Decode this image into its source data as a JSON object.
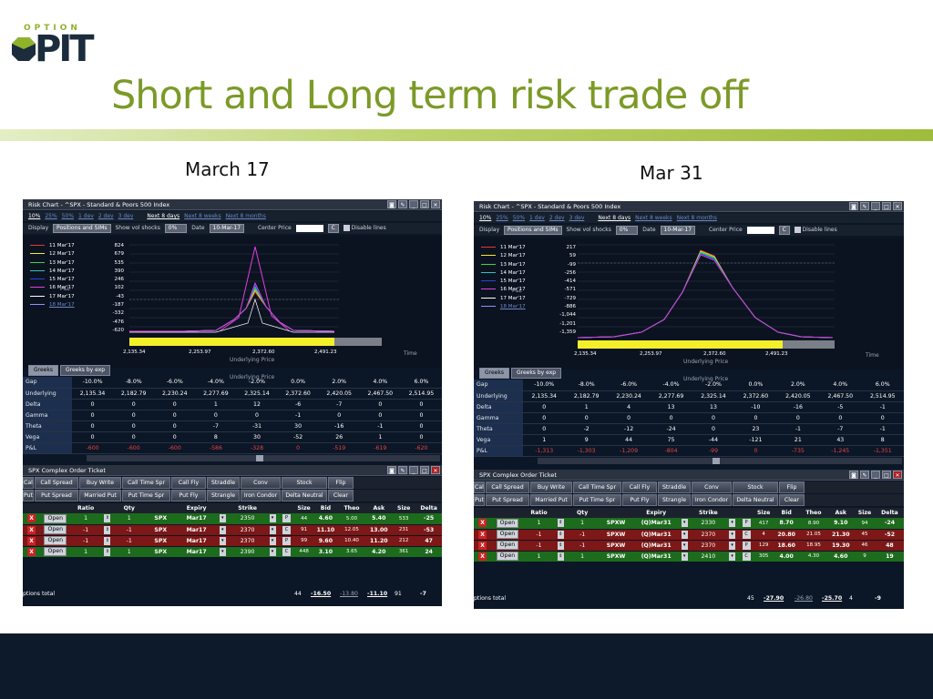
{
  "logo": {
    "option": "OPTION",
    "pit": "PIT"
  },
  "title": "Short and Long term risk trade off",
  "left_label": "March 17",
  "right_label": "Mar 31",
  "panels": [
    {
      "window_title": "Risk Chart - ^SPX - Standard & Poors 500 Index",
      "ranges": [
        "10%",
        "25%",
        "50%",
        "1 dev",
        "2 dev",
        "3 dev"
      ],
      "periods": [
        "Next 8 days",
        "Next 8 weeks",
        "Next 8 months"
      ],
      "display_label": "Display",
      "display_value": "Positions and SIMs",
      "shocks_label": "Show vol shocks",
      "shocks_value": "0%",
      "date_label": "Date",
      "date_value": "10-Mar-17",
      "center_label": "Center Price",
      "c_btn": "C",
      "disable_label": "Disable lines",
      "legend": [
        "11 Mar'17",
        "12 Mar'17",
        "13 Mar'17",
        "14 Mar'17",
        "15 Mar'17",
        "16 Mar'17",
        "17 Mar'17",
        "18 Mar'17"
      ],
      "legend_colors": [
        "#e53935",
        "#f4e842",
        "#46d246",
        "#2ec4c4",
        "#2f3fe0",
        "#e040e0",
        "#ffffff",
        "#9090ff"
      ],
      "pnl_label": "P&L",
      "pnl_ticks": [
        "824",
        "679",
        "535",
        "390",
        "246",
        "102",
        "-43",
        "-187",
        "-332",
        "-476",
        "-620"
      ],
      "x_ticks": [
        "2,135.34",
        "2,253.97",
        "2,372.60",
        "2,491.23"
      ],
      "x_label": "Underlying Price",
      "time_label": "Time",
      "tabs": [
        "Greeks",
        "Greeks by exp"
      ],
      "greek_rows": [
        {
          "name": "Gap",
          "vals": [
            "-10.0%",
            "-8.0%",
            "-6.0%",
            "-4.0%",
            "-2.0%",
            "0.0%",
            "2.0%",
            "4.0%",
            "6.0%"
          ]
        },
        {
          "name": "Underlying",
          "vals": [
            "2,135.34",
            "2,182.79",
            "2,230.24",
            "2,277.69",
            "2,325.14",
            "2,372.60",
            "2,420.05",
            "2,467.50",
            "2,514.95"
          ]
        },
        {
          "name": "Delta",
          "vals": [
            "0",
            "0",
            "0",
            "1",
            "12",
            "-6",
            "-7",
            "0",
            "0"
          ]
        },
        {
          "name": "Gamma",
          "vals": [
            "0",
            "0",
            "0",
            "0",
            "0",
            "-1",
            "0",
            "0",
            "0"
          ]
        },
        {
          "name": "Theta",
          "vals": [
            "0",
            "0",
            "0",
            "-7",
            "-31",
            "30",
            "-16",
            "-1",
            "0"
          ]
        },
        {
          "name": "Vega",
          "vals": [
            "0",
            "0",
            "0",
            "8",
            "30",
            "-52",
            "26",
            "1",
            "0"
          ]
        },
        {
          "name": "P&L",
          "vals": [
            "-600",
            "-600",
            "-600",
            "-586",
            "-328",
            "0",
            "-519",
            "-619",
            "-620"
          ]
        }
      ],
      "ticket_title": "SPX Complex Order Ticket",
      "btn_row1": [
        "Call",
        "Call Spread",
        "Buy Write",
        "Call Time Spr",
        "Call Fly",
        "Straddle",
        "Conv",
        "Stock",
        "Flip"
      ],
      "btn_row2": [
        "Put",
        "Put Spread",
        "Married Put",
        "Put Time Spr",
        "Put Fly",
        "Strangle",
        "Iron Condor",
        "Delta Neutral",
        "Clear"
      ],
      "order_headers": [
        "Ratio",
        "Qty",
        "Expiry",
        "Strike",
        "Size",
        "Bid",
        "Theo",
        "Ask",
        "Size",
        "Delta"
      ],
      "orders": [
        {
          "open": "Open",
          "ratio": "1",
          "qty": "1",
          "sym": "SPX",
          "exp": "Mar17",
          "strike": "2350",
          "cp": "P",
          "size": "44",
          "bid": "4.60",
          "theo": "5.00",
          "ask": "5.40",
          "asize": "533",
          "delta": "-25"
        },
        {
          "open": "Open",
          "ratio": "-1",
          "qty": "-1",
          "sym": "SPX",
          "exp": "Mar17",
          "strike": "2370",
          "cp": "C",
          "size": "91",
          "bid": "11.10",
          "theo": "12.05",
          "ask": "13.00",
          "asize": "231",
          "delta": "-53"
        },
        {
          "open": "Open",
          "ratio": "-1",
          "qty": "-1",
          "sym": "SPX",
          "exp": "Mar17",
          "strike": "2370",
          "cp": "P",
          "size": "99",
          "bid": "9.60",
          "theo": "10.40",
          "ask": "11.20",
          "asize": "212",
          "delta": "47"
        },
        {
          "open": "Open",
          "ratio": "1",
          "qty": "1",
          "sym": "SPX",
          "exp": "Mar17",
          "strike": "2390",
          "cp": "C",
          "size": "448",
          "bid": "3.10",
          "theo": "3.65",
          "ask": "4.20",
          "asize": "361",
          "delta": "24"
        }
      ],
      "totals": {
        "label": "ptions total",
        "size": "44",
        "bid": "-16.50",
        "theo": "-13.80",
        "ask": "-11.10",
        "asize": "91",
        "delta": "-7"
      }
    },
    {
      "window_title": "Risk Chart - ^SPX - Standard & Poors 500 Index",
      "ranges": [
        "10%",
        "25%",
        "50%",
        "1 dev",
        "2 dev",
        "3 dev"
      ],
      "periods": [
        "Next 8 days",
        "Next 8 weeks",
        "Next 8 months"
      ],
      "display_label": "Display",
      "display_value": "Positions and SIMs",
      "shocks_label": "Show vol shocks",
      "shocks_value": "0%",
      "date_label": "Date",
      "date_value": "10-Mar-17",
      "center_label": "Center Price",
      "c_btn": "C",
      "disable_label": "Disable lines",
      "legend": [
        "11 Mar'17",
        "12 Mar'17",
        "13 Mar'17",
        "14 Mar'17",
        "15 Mar'17",
        "16 Mar'17",
        "17 Mar'17",
        "18 Mar'17"
      ],
      "legend_colors": [
        "#e53935",
        "#f4e842",
        "#46d246",
        "#2ec4c4",
        "#2f3fe0",
        "#e040e0",
        "#ffffff",
        "#9090ff"
      ],
      "pnl_label": "P&L",
      "pnl_ticks": [
        "217",
        "59",
        "-99",
        "-256",
        "-414",
        "-571",
        "-729",
        "-886",
        "-1,044",
        "-1,201",
        "-1,359"
      ],
      "x_ticks": [
        "2,135.34",
        "2,253.97",
        "2,372.60",
        "2,491.23"
      ],
      "x_label": "Underlying Price",
      "time_label": "Time",
      "tabs": [
        "Greeks",
        "Greeks by exp"
      ],
      "greek_rows": [
        {
          "name": "Gap",
          "vals": [
            "-10.0%",
            "-8.0%",
            "-6.0%",
            "-4.0%",
            "-2.0%",
            "0.0%",
            "2.0%",
            "4.0%",
            "6.0%"
          ]
        },
        {
          "name": "Underlying",
          "vals": [
            "2,135.34",
            "2,182.79",
            "2,230.24",
            "2,277.69",
            "2,325.14",
            "2,372.60",
            "2,420.05",
            "2,467.50",
            "2,514.95"
          ]
        },
        {
          "name": "Delta",
          "vals": [
            "0",
            "1",
            "4",
            "13",
            "13",
            "-10",
            "-16",
            "-5",
            "-1"
          ]
        },
        {
          "name": "Gamma",
          "vals": [
            "0",
            "0",
            "0",
            "0",
            "0",
            "0",
            "0",
            "0",
            "0"
          ]
        },
        {
          "name": "Theta",
          "vals": [
            "0",
            "-2",
            "-12",
            "-24",
            "0",
            "23",
            "-1",
            "-7",
            "-1"
          ]
        },
        {
          "name": "Vega",
          "vals": [
            "1",
            "9",
            "44",
            "75",
            "-44",
            "-121",
            "21",
            "43",
            "8"
          ]
        },
        {
          "name": "P&L",
          "vals": [
            "-1,313",
            "-1,303",
            "-1,209",
            "-804",
            "-99",
            "0",
            "-735",
            "-1,245",
            "-1,351"
          ]
        }
      ],
      "ticket_title": "SPX Complex Order Ticket",
      "btn_row1": [
        "Call",
        "Call Spread",
        "Buy Write",
        "Call Time Spr",
        "Call Fly",
        "Straddle",
        "Conv",
        "Stock",
        "Flip"
      ],
      "btn_row2": [
        "Put",
        "Put Spread",
        "Married Put",
        "Put Time Spr",
        "Put Fly",
        "Strangle",
        "Iron Condor",
        "Delta Neutral",
        "Clear"
      ],
      "order_headers": [
        "Ratio",
        "Qty",
        "Expiry",
        "Strike",
        "Size",
        "Bid",
        "Theo",
        "Ask",
        "Size",
        "Delta"
      ],
      "orders": [
        {
          "open": "Open",
          "ratio": "1",
          "qty": "1",
          "sym": "SPXW",
          "exp": "(Q)Mar31",
          "strike": "2330",
          "cp": "P",
          "size": "417",
          "bid": "8.70",
          "theo": "8.90",
          "ask": "9.10",
          "asize": "94",
          "delta": "-24"
        },
        {
          "open": "Open",
          "ratio": "-1",
          "qty": "-1",
          "sym": "SPXW",
          "exp": "(Q)Mar31",
          "strike": "2370",
          "cp": "C",
          "size": "4",
          "bid": "20.80",
          "theo": "21.05",
          "ask": "21.30",
          "asize": "45",
          "delta": "-52"
        },
        {
          "open": "Open",
          "ratio": "-1",
          "qty": "-1",
          "sym": "SPXW",
          "exp": "(Q)Mar31",
          "strike": "2370",
          "cp": "P",
          "size": "129",
          "bid": "18.60",
          "theo": "18.95",
          "ask": "19.30",
          "asize": "46",
          "delta": "48"
        },
        {
          "open": "Open",
          "ratio": "1",
          "qty": "1",
          "sym": "SPXW",
          "exp": "(Q)Mar31",
          "strike": "2410",
          "cp": "C",
          "size": "305",
          "bid": "4.00",
          "theo": "4.30",
          "ask": "4.60",
          "asize": "9",
          "delta": "19"
        }
      ],
      "totals": {
        "label": "ptions total",
        "size": "45",
        "bid": "-27.90",
        "theo": "-26.80",
        "ask": "-25.70",
        "asize": "4",
        "delta": "-9"
      }
    }
  ],
  "colors": {
    "title": "#7c9a27",
    "brand_dark": "#1b2c3c",
    "buy_row": "#1d6b1d",
    "sell_row": "#7e1717",
    "pnl_bar": "#f3f02a"
  }
}
